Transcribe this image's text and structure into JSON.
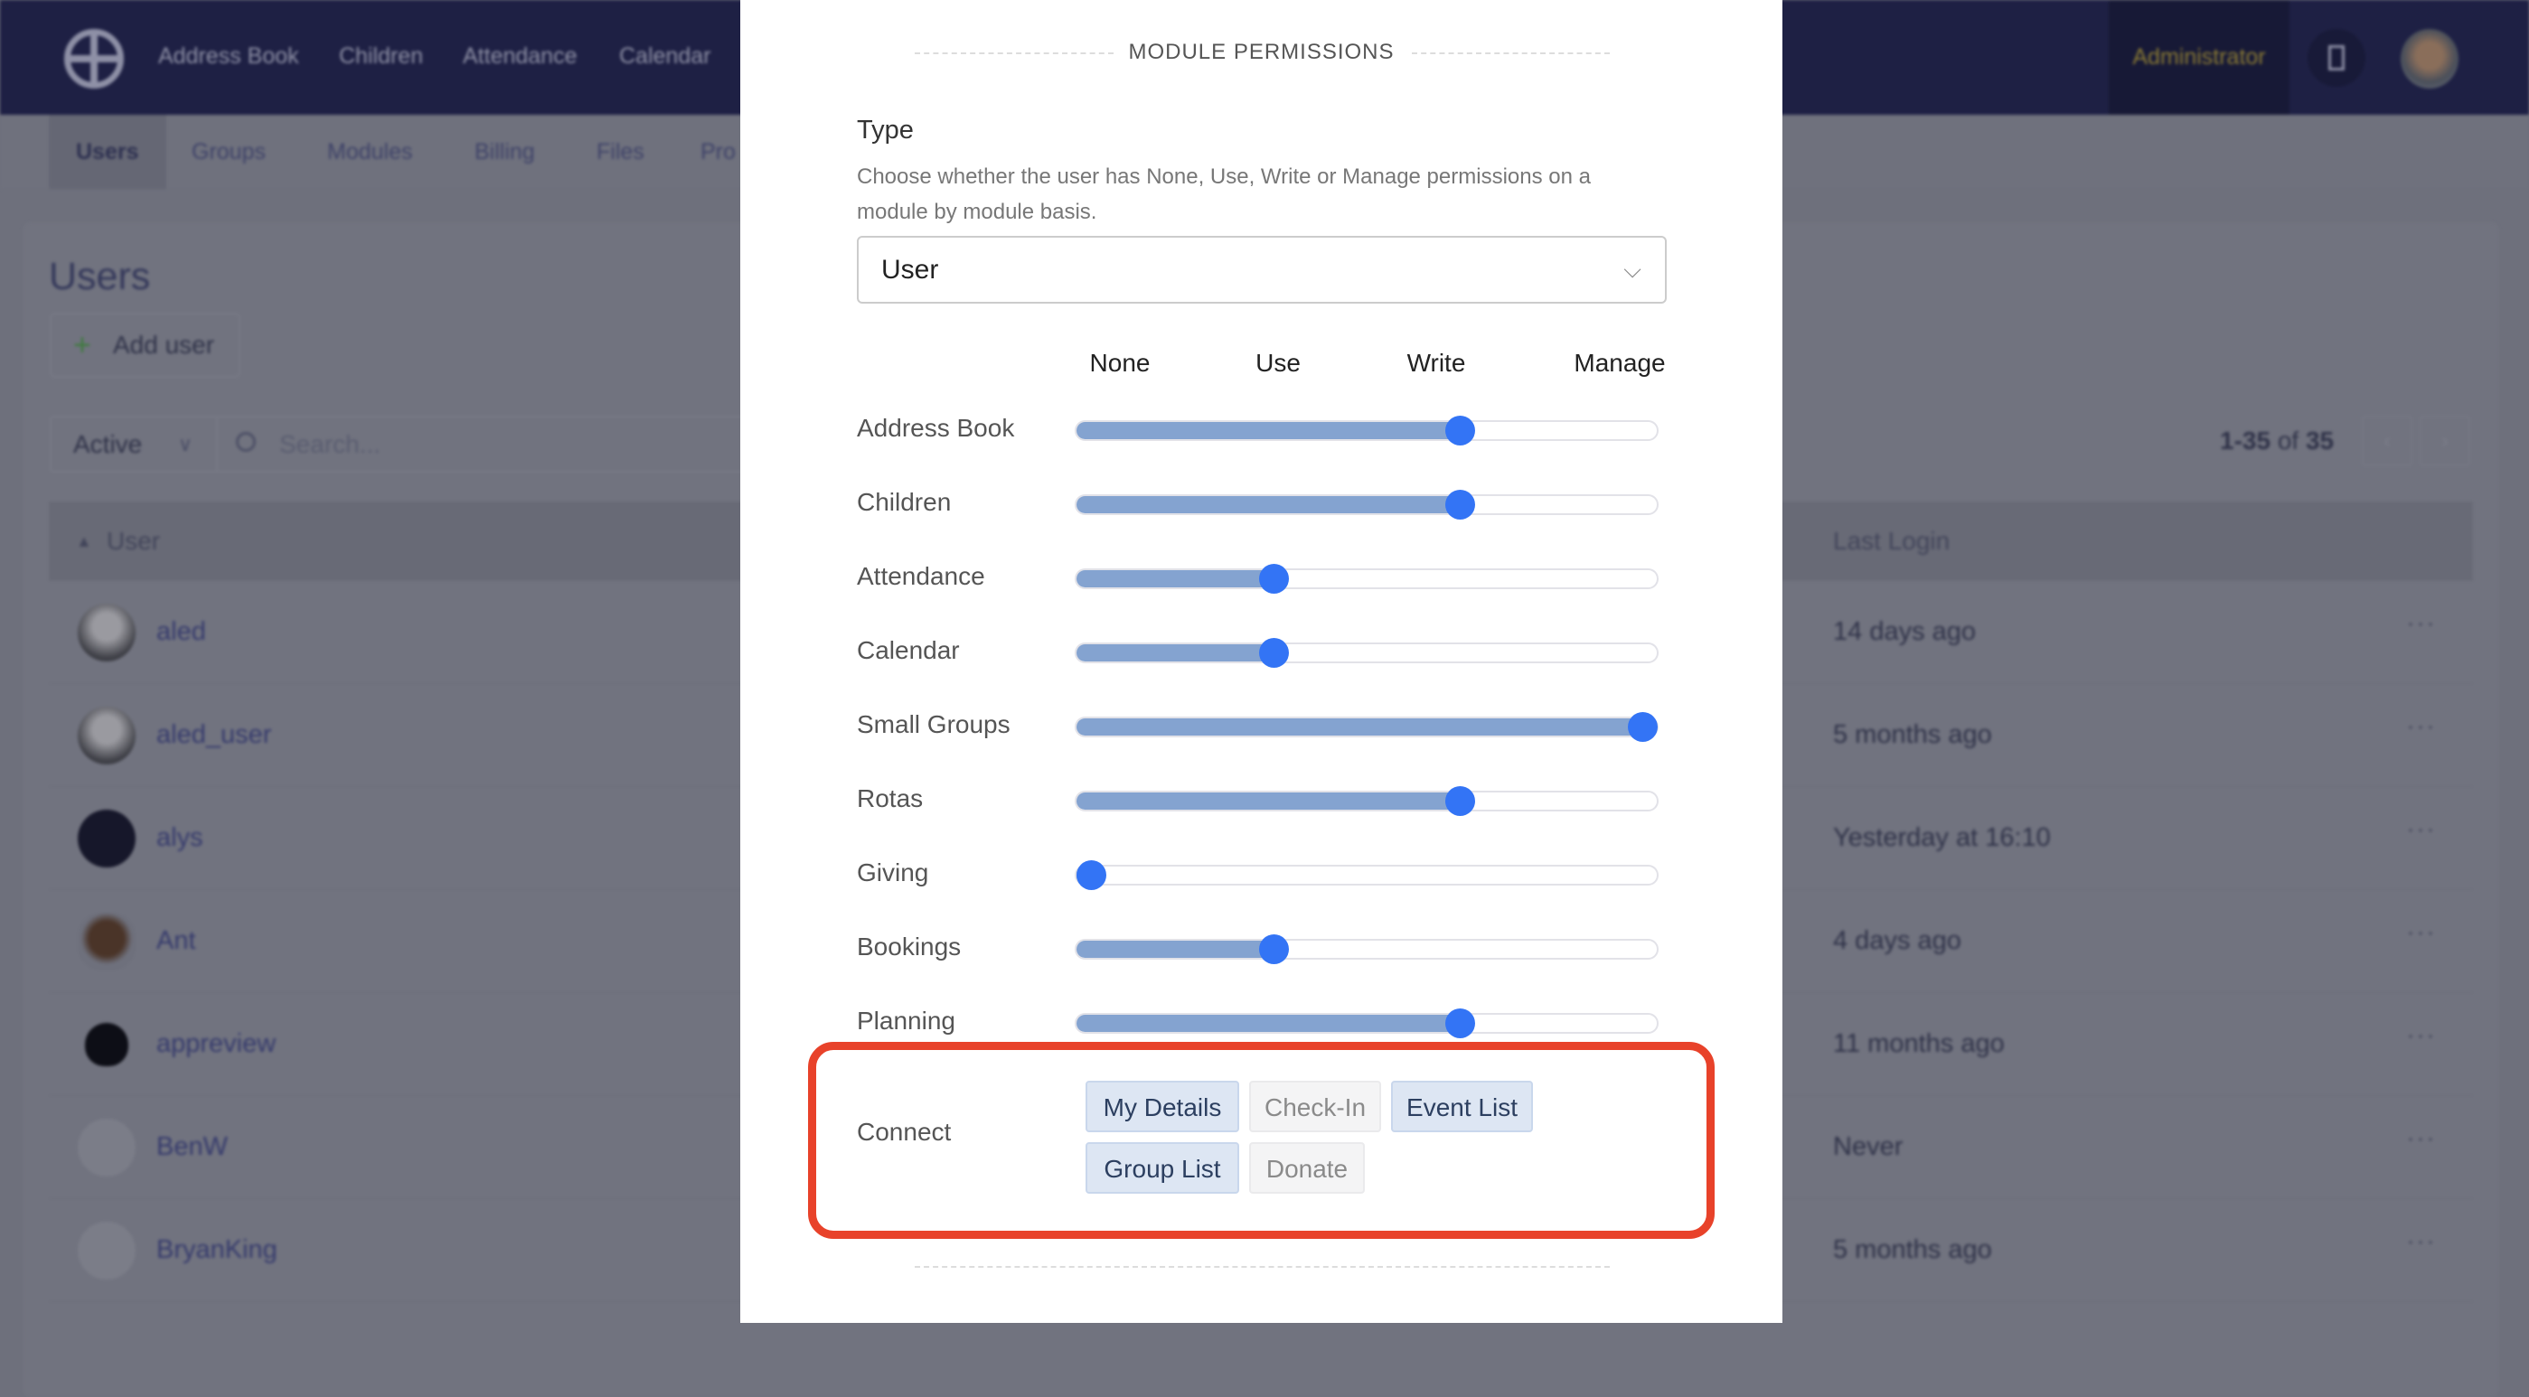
{
  "nav": {
    "items": [
      "Address Book",
      "Children",
      "Attendance",
      "Calendar"
    ],
    "role": "Administrator"
  },
  "subnav": {
    "items": [
      "Users",
      "Groups",
      "Modules",
      "Billing",
      "Files",
      "Pro"
    ],
    "active": "Users"
  },
  "page": {
    "title": "Users",
    "add_user_label": "Add user",
    "filter_value": "Active",
    "search_placeholder": "Search...",
    "pagination": {
      "range": "1-35",
      "of": "of",
      "total": "35",
      "prev": "‹",
      "next": "›"
    },
    "columns": {
      "user": "User",
      "last_login": "Last Login"
    },
    "rows": [
      {
        "name": "aled",
        "last_login": "14 days ago",
        "avatar": "photo-grey"
      },
      {
        "name": "aled_user",
        "last_login": "5 months ago",
        "avatar": "photo-grey"
      },
      {
        "name": "alys",
        "last_login": "Yesterday at 16:10",
        "avatar": "photo-dark"
      },
      {
        "name": "Ant",
        "last_login": "4 days ago",
        "avatar": "photo-face"
      },
      {
        "name": "appreview",
        "last_login": "11 months ago",
        "avatar": "apple-logo"
      },
      {
        "name": "BenW",
        "last_login": "Never",
        "avatar": "placeholder"
      },
      {
        "name": "BryanKing",
        "last_login": "5 months ago",
        "avatar": "placeholder"
      }
    ],
    "row_menu": "···"
  },
  "modal": {
    "heading": "MODULE PERMISSIONS",
    "type_label": "Type",
    "type_description": "Choose whether the user has None, Use, Write or Manage permissions on a module by module basis.",
    "type_value": "User",
    "levels": [
      "None",
      "Use",
      "Write",
      "Manage"
    ],
    "modules": [
      {
        "name": "Address Book",
        "level": "Write"
      },
      {
        "name": "Children",
        "level": "Write"
      },
      {
        "name": "Attendance",
        "level": "Use"
      },
      {
        "name": "Calendar",
        "level": "Use"
      },
      {
        "name": "Small Groups",
        "level": "Manage"
      },
      {
        "name": "Rotas",
        "level": "Write"
      },
      {
        "name": "Giving",
        "level": "None"
      },
      {
        "name": "Bookings",
        "level": "Use"
      },
      {
        "name": "Planning",
        "level": "Write"
      }
    ],
    "connect": {
      "label": "Connect",
      "options": [
        {
          "label": "My Details",
          "enabled": true
        },
        {
          "label": "Check-In",
          "enabled": false
        },
        {
          "label": "Event List",
          "enabled": true
        },
        {
          "label": "Group List",
          "enabled": true
        },
        {
          "label": "Donate",
          "enabled": false
        }
      ]
    },
    "highlight_color": "#e8422a",
    "slider_color": "#3374f5"
  }
}
